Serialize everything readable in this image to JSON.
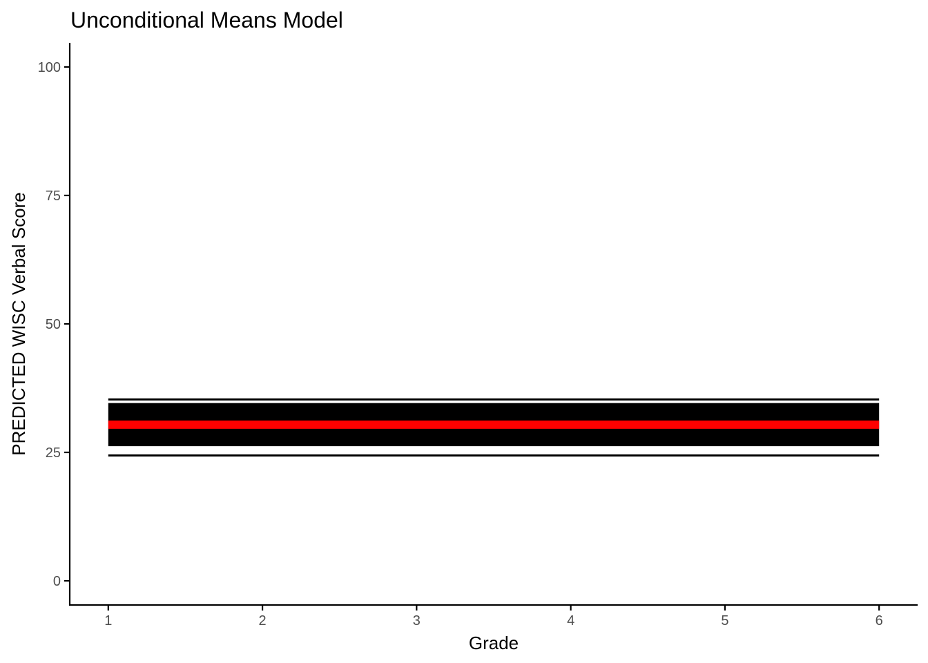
{
  "chart_data": {
    "type": "line",
    "title": "Unconditional Means Model",
    "xlabel": "Grade",
    "ylabel": "PREDICTED WISC Verbal Score",
    "xlim": [
      0.75,
      6.25
    ],
    "ylim": [
      -4.7,
      104.7
    ],
    "x_ticks": [
      1,
      2,
      3,
      4,
      5,
      6
    ],
    "x_tick_labels": [
      "1",
      "2",
      "3",
      "4",
      "5",
      "6"
    ],
    "y_ticks": [
      0,
      25,
      50,
      75,
      100
    ],
    "y_tick_labels": [
      "0",
      "25",
      "50",
      "75",
      "100"
    ],
    "grid": false,
    "legend": "none",
    "band": {
      "x": [
        1,
        6
      ],
      "low": 26.2,
      "high": 34.6,
      "color": "#000000"
    },
    "series": [
      {
        "x": [
          1,
          6
        ],
        "y": [
          35.3,
          35.3
        ],
        "color": "#000000"
      },
      {
        "x": [
          1,
          6
        ],
        "y": [
          24.4,
          24.4
        ],
        "color": "#000000"
      },
      {
        "x": [
          1,
          6
        ],
        "y": [
          30.4,
          30.4
        ],
        "color": "#ff0000"
      }
    ]
  }
}
